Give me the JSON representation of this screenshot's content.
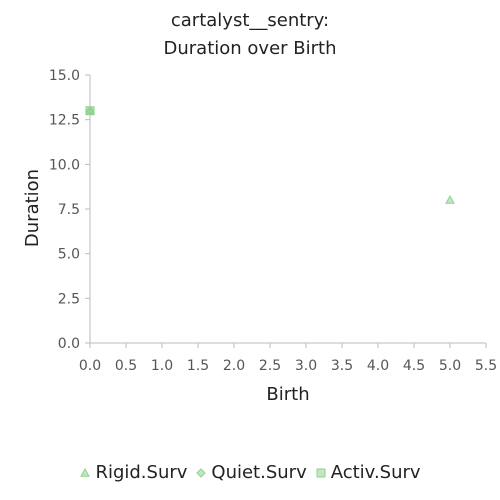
{
  "chart_data": {
    "type": "scatter",
    "title_line1": "cartalyst__sentry:",
    "title_line2": "Duration over Birth",
    "xlabel": "Birth",
    "ylabel": "Duration",
    "xlim": [
      0.0,
      5.5
    ],
    "ylim": [
      0.0,
      15.0
    ],
    "x_ticks": [
      "0.0",
      "0.5",
      "1.0",
      "1.5",
      "2.0",
      "2.5",
      "3.0",
      "3.5",
      "4.0",
      "4.5",
      "5.0",
      "5.5"
    ],
    "y_ticks": [
      "0.0",
      "2.5",
      "5.0",
      "7.5",
      "10.0",
      "12.5",
      "15.0"
    ],
    "grid": false,
    "legend_position": "bottom",
    "series": [
      {
        "name": "Rigid.Surv",
        "marker": "triangle",
        "color": "#8fd18f",
        "points": [
          {
            "x": 0.0,
            "y": 13.0
          },
          {
            "x": 5.0,
            "y": 8.0
          }
        ]
      },
      {
        "name": "Quiet.Surv",
        "marker": "diamond",
        "color": "#8fd18f",
        "points": [
          {
            "x": 0.0,
            "y": 13.0
          }
        ]
      },
      {
        "name": "Activ.Surv",
        "marker": "square",
        "color": "#8fd18f",
        "points": [
          {
            "x": 0.0,
            "y": 13.0
          }
        ]
      }
    ]
  }
}
